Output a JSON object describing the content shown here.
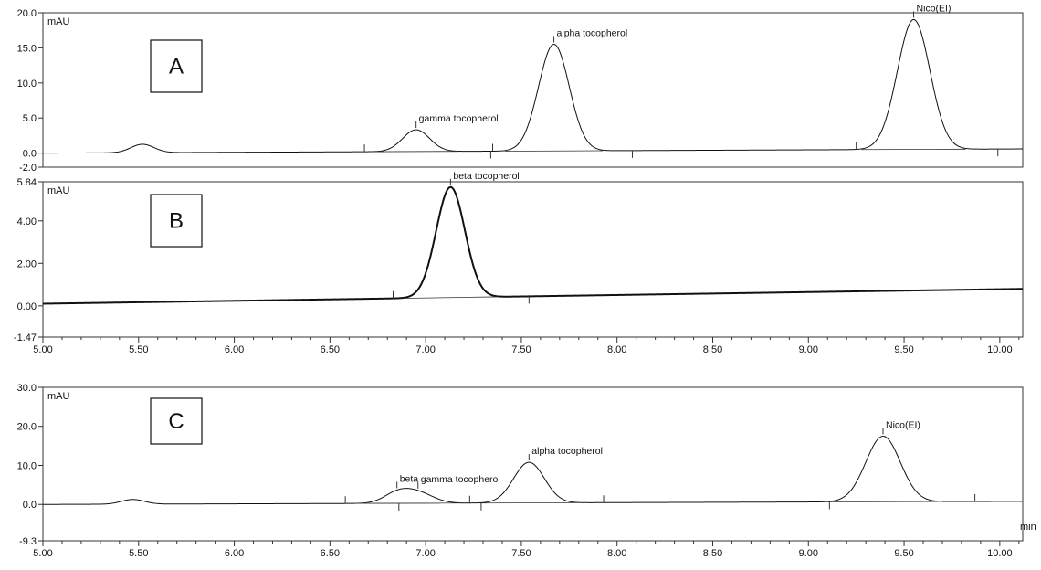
{
  "chart_data": {
    "type": "line",
    "x_unit": "min",
    "xlim": [
      5.0,
      10.12
    ],
    "x_ticks": [
      "5.00",
      "5.50",
      "6.00",
      "6.50",
      "7.00",
      "7.50",
      "8.00",
      "8.50",
      "9.00",
      "9.50",
      "10.00"
    ],
    "panels": [
      {
        "id": "A",
        "letter": "A",
        "ylabel": "mAU",
        "ylim": [
          -2.0,
          20.0
        ],
        "y_ticks": [
          "20.0",
          "15.0",
          "10.0",
          "5.0",
          "0.0",
          "-2.0"
        ],
        "baseline": [
          [
            5.0,
            0.0
          ],
          [
            10.12,
            0.6
          ]
        ],
        "peaks": [
          {
            "rt": 5.52,
            "height": 1.2,
            "width": 0.06,
            "label": ""
          },
          {
            "rt": 6.95,
            "height": 3.1,
            "width": 0.07,
            "label": "gamma tocopherol"
          },
          {
            "rt": 7.67,
            "height": 15.2,
            "width": 0.08,
            "label": "alpha tocopherol"
          },
          {
            "rt": 9.55,
            "height": 18.5,
            "width": 0.085,
            "label": "Nico(EI)"
          }
        ],
        "integration_marks": [
          6.68,
          7.34,
          7.35,
          8.08,
          9.25,
          9.99
        ]
      },
      {
        "id": "B",
        "letter": "B",
        "ylabel": "mAU",
        "ylim": [
          -1.47,
          5.84
        ],
        "y_ticks": [
          "5.84",
          "4.00",
          "2.00",
          "0.00",
          "-1.47"
        ],
        "baseline": [
          [
            5.0,
            0.1
          ],
          [
            10.12,
            0.8
          ]
        ],
        "peaks": [
          {
            "rt": 7.13,
            "height": 5.2,
            "width": 0.075,
            "label": "beta tocopherol"
          }
        ],
        "integration_marks": [
          6.83,
          7.54
        ]
      },
      {
        "id": "C",
        "letter": "C",
        "ylabel": "mAU",
        "ylim": [
          -9.3,
          30.0
        ],
        "y_ticks": [
          "30.0",
          "20.0",
          "10.0",
          "0.0",
          "-9.3"
        ],
        "baseline": [
          [
            5.0,
            0.0
          ],
          [
            10.12,
            0.8
          ]
        ],
        "peaks": [
          {
            "rt": 5.47,
            "height": 1.2,
            "width": 0.06,
            "label": ""
          },
          {
            "rt": 6.85,
            "height": 2.4,
            "width": 0.07,
            "label": "beta"
          },
          {
            "rt": 6.96,
            "height": 2.6,
            "width": 0.08,
            "label": "gamma tocopherol"
          },
          {
            "rt": 7.54,
            "height": 10.4,
            "width": 0.08,
            "label": "alpha tocopherol"
          },
          {
            "rt": 9.39,
            "height": 16.8,
            "width": 0.09,
            "label": "Nico(EI)"
          }
        ],
        "integration_marks": [
          6.58,
          6.86,
          7.23,
          7.29,
          7.93,
          9.11,
          9.87
        ]
      }
    ]
  }
}
